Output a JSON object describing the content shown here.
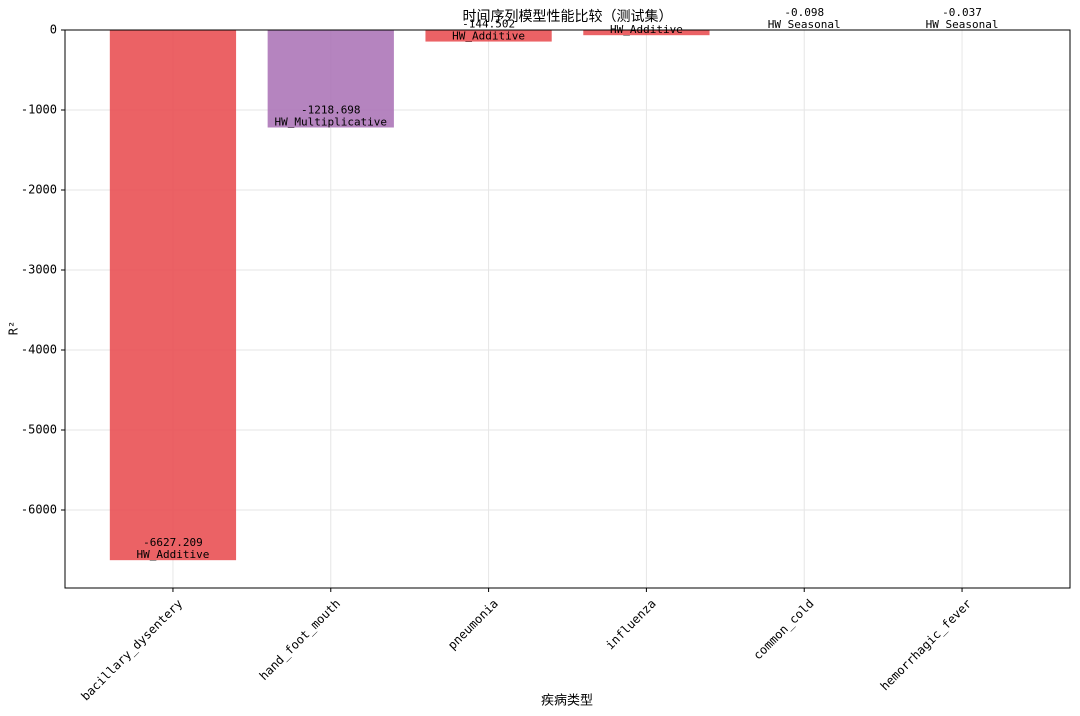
{
  "chart_data": {
    "type": "bar",
    "title": "时间序列模型性能比较（测试集）",
    "xlabel": "疾病类型",
    "ylabel": "R²",
    "categories": [
      "bacillary_dysentery",
      "hand_foot_mouth",
      "pneumonia",
      "influenza",
      "common_cold",
      "hemorrhagic_fever"
    ],
    "values": [
      -6627.209,
      -1218.698,
      -144.502,
      -65,
      -0.098,
      -0.037
    ],
    "value_labels": [
      "-6627.209",
      "-1218.698",
      "-144.502",
      null,
      "-0.098",
      "-0.037"
    ],
    "models": [
      "HW_Additive",
      "HW_Multiplicative",
      "HW_Additive",
      "HW_Additive",
      "HW_Seasonal",
      "HW_Seasonal"
    ],
    "colors": [
      "#e8474a",
      "#a86fb4",
      "#e8474a",
      "#e8474a",
      "#4daf4a",
      "#4daf4a"
    ],
    "ylim": [
      -6975,
      0
    ],
    "yticks": [
      0,
      -1000,
      -2000,
      -3000,
      -4000,
      -5000,
      -6000
    ],
    "grid": true
  }
}
